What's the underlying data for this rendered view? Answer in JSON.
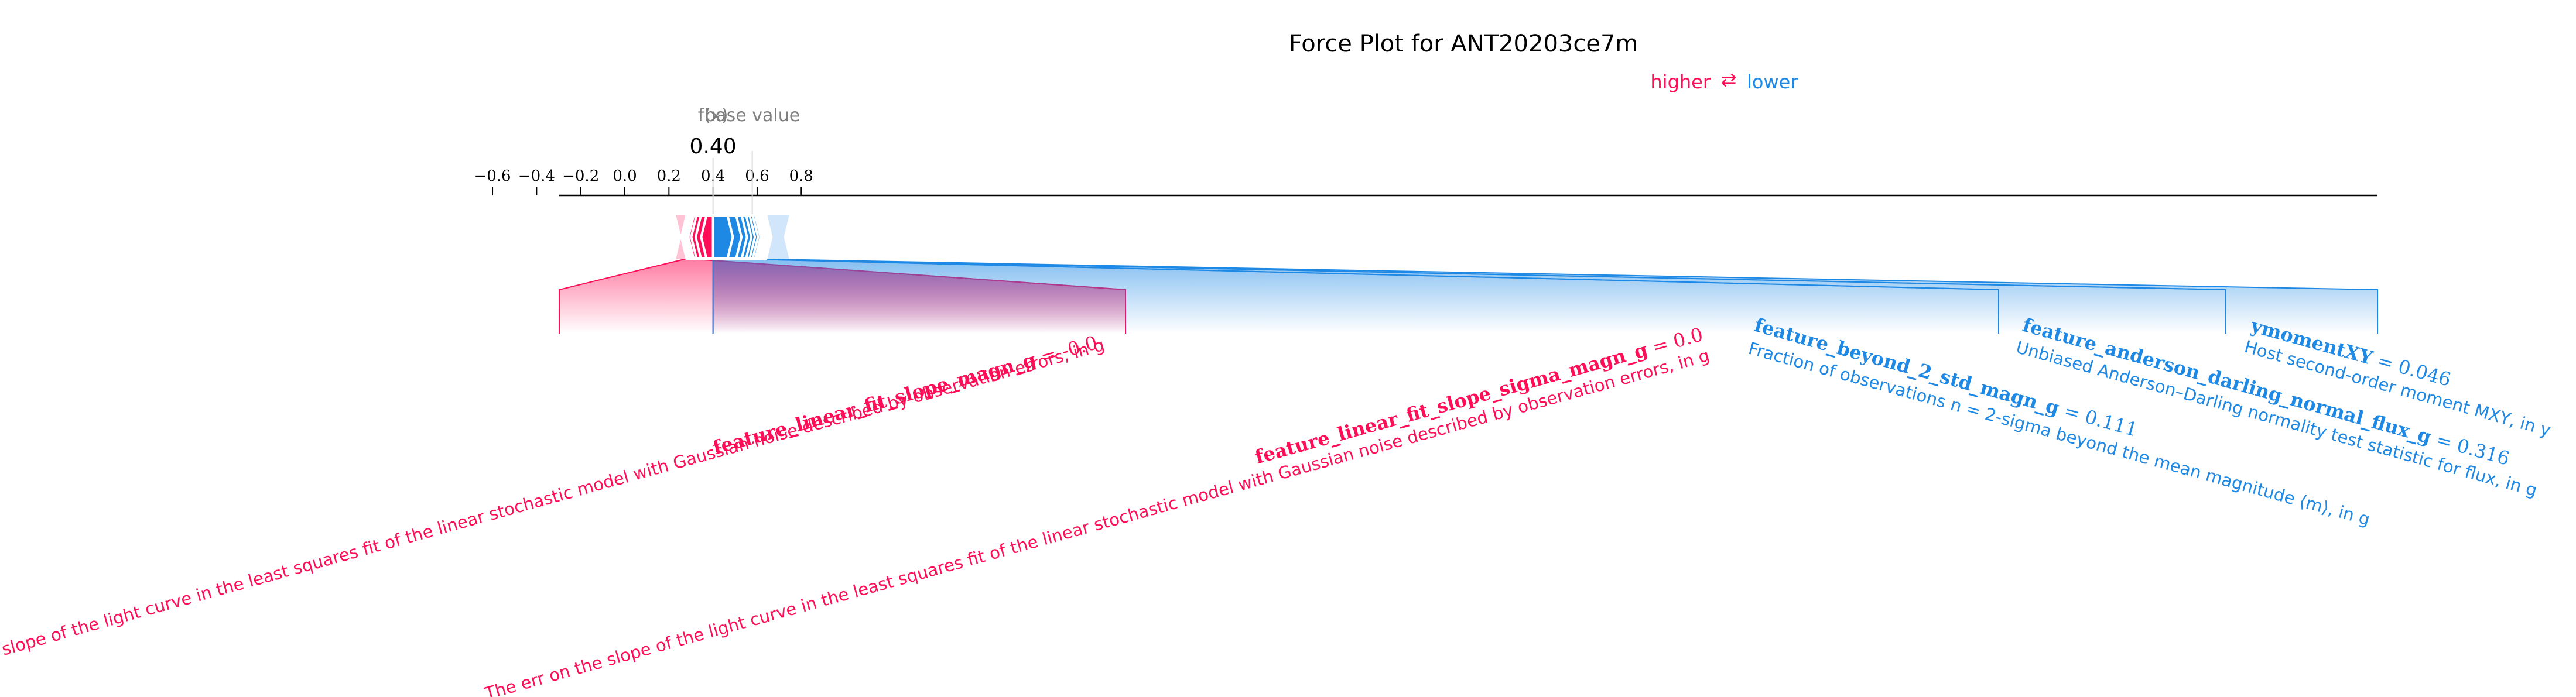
{
  "chart_data": {
    "type": "force_plot",
    "title": "Force Plot for ANT20203ce7m",
    "legend": {
      "higher": "higher",
      "arrow": "⇄",
      "lower": "lower"
    },
    "output_label": "f(x)",
    "output_value": 0.4,
    "output_text": "0.40",
    "base_label": "base value",
    "base_value": 0.578,
    "xlim": [
      -0.658,
      0.982
    ],
    "ticks": [
      -0.6,
      -0.4,
      -0.2,
      0.0,
      0.2,
      0.4,
      0.6,
      0.8
    ],
    "tick_labels": [
      "−0.6",
      "−0.4",
      "−0.2",
      "0.0",
      "0.2",
      "0.4",
      "0.6",
      "0.8"
    ],
    "colors": {
      "positive": "#ff0d57",
      "negative": "#1e88e5",
      "positive_light": "#ffc3d5",
      "negative_light": "#d1e6fa",
      "gray": "#7f7f7f"
    },
    "positive_segments": [
      0.4,
      0.37,
      0.345,
      0.325,
      0.312,
      0.302,
      0.295,
      0.29,
      0.286,
      0.283,
      0.28
    ],
    "positive_extent": 0.232,
    "negative_segments": [
      0.4,
      0.466,
      0.505,
      0.53,
      0.55,
      0.566,
      0.58,
      0.592,
      0.602,
      0.61,
      0.617,
      0.623,
      0.628,
      0.632,
      0.636,
      0.639,
      0.641
    ],
    "negative_extent": 0.745,
    "features": [
      {
        "side": "positive",
        "name": "feature_linear_fit_slope_magn_g",
        "value_text": " = -0.0",
        "description": "The slope of the light curve in the least squares fit of the linear stochastic model with Gaussian noise described by observation errors, in g",
        "bar_from": 0.0,
        "bar_to": 0.0
      },
      {
        "side": "positive",
        "name": "feature_linear_fit_slope_sigma_magn_g",
        "value_text": " = 0.0",
        "description": "The err on the slope of the light curve in the least squares fit of the linear stochastic model with Gaussian noise described by observation errors, in g",
        "bar_from": 0.0,
        "bar_to": 0.0
      },
      {
        "side": "negative",
        "name": "feature_beyond_2_std_magn_g",
        "value_text": " = 0.111",
        "description": "Fraction of observations n = 2-sigma beyond the mean magnitude ⟨m⟩, in g",
        "bar_from": 0.0,
        "bar_to": 0.0
      },
      {
        "side": "negative",
        "name": "feature_anderson_darling_normal_flux_g",
        "value_text": " = 0.316",
        "description": "Unbiased Anderson–Darling normality test statistic for flux, in g",
        "bar_from": 0.0,
        "bar_to": 0.0
      },
      {
        "side": "negative",
        "name": "ymomentXY",
        "value_text": " = 0.046",
        "description": "Host second-order moment MXY, in y",
        "bar_from": 0.0,
        "bar_to": 0.0
      }
    ]
  }
}
